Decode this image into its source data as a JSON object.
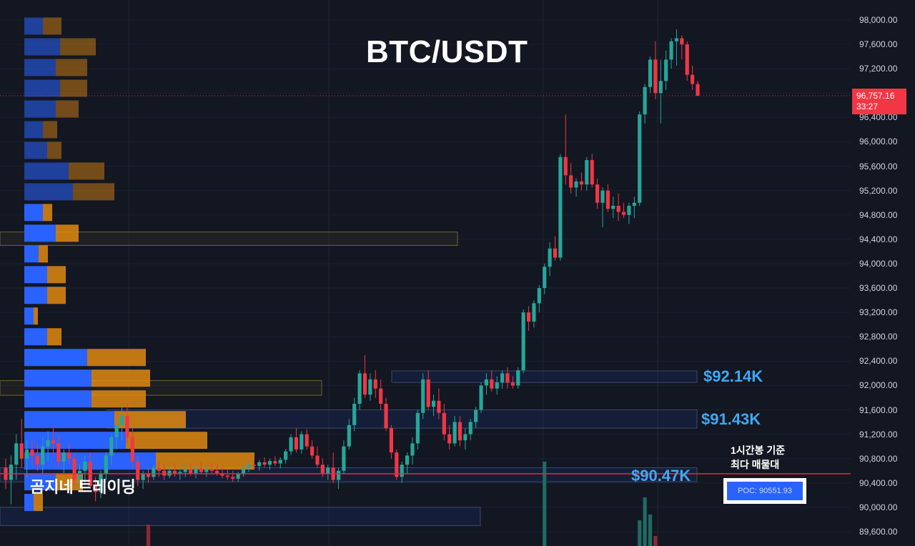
{
  "chart_data": {
    "type": "candlestick",
    "title": "BTC/USDT",
    "y_axis": {
      "ylim": [
        89420,
        98250
      ],
      "ticks": [
        "98,000.00",
        "97,600.00",
        "97,200.00",
        "96,800.00",
        "96,400.00",
        "96,000.00",
        "95,600.00",
        "95,200.00",
        "94,800.00",
        "94,400.00",
        "94,000.00",
        "93,600.00",
        "93,200.00",
        "92,800.00",
        "92,400.00",
        "92,000.00",
        "91,600.00",
        "91,200.00",
        "90,800.00",
        "90,400.00",
        "90,000.00",
        "89,600.00"
      ]
    },
    "current_price": {
      "value": "96,757.16",
      "countdown": "33:27",
      "price": 96757.16
    },
    "poc": {
      "price": 90551.93,
      "label": "POC: 90551.93"
    },
    "levels": [
      {
        "label": "$92.14K",
        "price": 92140
      },
      {
        "label": "$91.43K",
        "price": 91430
      },
      {
        "label": "$90.47K",
        "price": 90470
      }
    ],
    "annotations": {
      "poc_note_line1": "1시간봉 기준",
      "poc_note_line2": "최다 매물대",
      "watermark": "곰지네 트레이딩"
    },
    "candles": [
      [
        90650,
        90800,
        90300,
        90450
      ],
      [
        90450,
        90850,
        90050,
        90700
      ],
      [
        90700,
        91200,
        90450,
        91050
      ],
      [
        91050,
        91450,
        90650,
        90800
      ],
      [
        90800,
        91100,
        90500,
        90950
      ],
      [
        90950,
        91100,
        90700,
        90850
      ],
      [
        90850,
        91050,
        90600,
        90700
      ],
      [
        90700,
        91150,
        90550,
        91000
      ],
      [
        91000,
        91250,
        90750,
        91100
      ],
      [
        91100,
        91300,
        90900,
        91050
      ],
      [
        91050,
        91200,
        90650,
        90750
      ],
      [
        90750,
        90950,
        90550,
        90900
      ],
      [
        90900,
        91050,
        90700,
        90800
      ],
      [
        90800,
        90900,
        90350,
        90450
      ],
      [
        90450,
        90700,
        90300,
        90600
      ],
      [
        90600,
        90850,
        90400,
        90750
      ],
      [
        90750,
        90900,
        90300,
        90350
      ],
      [
        90350,
        90500,
        90100,
        90250
      ],
      [
        90250,
        90600,
        90150,
        90550
      ],
      [
        90550,
        90900,
        90450,
        90850
      ],
      [
        90850,
        91200,
        90700,
        91150
      ],
      [
        91150,
        91450,
        90950,
        91350
      ],
      [
        91350,
        91650,
        91100,
        91500
      ],
      [
        91500,
        91700,
        91050,
        91150
      ],
      [
        91150,
        91300,
        90650,
        90750
      ],
      [
        90750,
        90850,
        90350,
        90450
      ],
      [
        90450,
        90600,
        90300,
        90550
      ],
      [
        90550,
        90650,
        90400,
        90500
      ],
      [
        90500,
        90700,
        90450,
        90650
      ],
      [
        90650,
        90750,
        90500,
        90600
      ],
      [
        90600,
        90700,
        90450,
        90520
      ],
      [
        90520,
        90680,
        90480,
        90600
      ],
      [
        90600,
        90720,
        90500,
        90550
      ],
      [
        90550,
        90650,
        90450,
        90580
      ],
      [
        90580,
        90700,
        90500,
        90620
      ],
      [
        90620,
        90720,
        90520,
        90560
      ],
      [
        90560,
        90680,
        90480,
        90640
      ],
      [
        90640,
        90740,
        90540,
        90580
      ],
      [
        90580,
        90700,
        90500,
        90620
      ],
      [
        90620,
        90720,
        90540,
        90600
      ],
      [
        90600,
        90700,
        90520,
        90560
      ],
      [
        90560,
        90660,
        90480,
        90520
      ],
      [
        90520,
        90620,
        90450,
        90500
      ],
      [
        90500,
        90600,
        90420,
        90470
      ],
      [
        90470,
        90580,
        90420,
        90550
      ],
      [
        90550,
        90680,
        90500,
        90640
      ],
      [
        90640,
        90760,
        90580,
        90700
      ],
      [
        90700,
        90800,
        90620,
        90680
      ],
      [
        90680,
        90780,
        90600,
        90740
      ],
      [
        90740,
        90820,
        90660,
        90700
      ],
      [
        90700,
        90800,
        90620,
        90760
      ],
      [
        90760,
        90840,
        90680,
        90720
      ],
      [
        90720,
        90820,
        90640,
        90780
      ],
      [
        90780,
        90960,
        90720,
        90920
      ],
      [
        90920,
        91200,
        90860,
        91150
      ],
      [
        91150,
        91300,
        90900,
        90950
      ],
      [
        90950,
        91250,
        90880,
        91200
      ],
      [
        91200,
        91280,
        90950,
        91000
      ],
      [
        91000,
        91100,
        90800,
        90850
      ],
      [
        90850,
        91000,
        90650,
        90700
      ],
      [
        90700,
        90800,
        90500,
        90550
      ],
      [
        90550,
        90700,
        90450,
        90650
      ],
      [
        90650,
        90900,
        90400,
        90450
      ],
      [
        90450,
        90650,
        90300,
        90600
      ],
      [
        90600,
        91100,
        90550,
        91000
      ],
      [
        91000,
        91450,
        90950,
        91350
      ],
      [
        91350,
        91800,
        91250,
        91700
      ],
      [
        91700,
        92250,
        91600,
        92200
      ],
      [
        92200,
        92500,
        91800,
        91850
      ],
      [
        91850,
        92200,
        91750,
        92100
      ],
      [
        92100,
        92250,
        91800,
        91950
      ],
      [
        91950,
        92100,
        91600,
        91700
      ],
      [
        91700,
        91800,
        91250,
        91300
      ],
      [
        91300,
        91350,
        90800,
        90900
      ],
      [
        90900,
        90950,
        90450,
        90500
      ],
      [
        90500,
        90750,
        90400,
        90700
      ],
      [
        90700,
        90900,
        90550,
        90850
      ],
      [
        90850,
        91150,
        90700,
        91050
      ],
      [
        91050,
        91600,
        90950,
        91550
      ],
      [
        91550,
        92200,
        91450,
        92100
      ],
      [
        92100,
        92250,
        91600,
        91650
      ],
      [
        91650,
        91850,
        91500,
        91750
      ],
      [
        91750,
        91950,
        91450,
        91550
      ],
      [
        91550,
        91700,
        91100,
        91200
      ],
      [
        91200,
        91350,
        90950,
        91050
      ],
      [
        91050,
        91500,
        91000,
        91400
      ],
      [
        91400,
        91500,
        91000,
        91100
      ],
      [
        91100,
        91300,
        90950,
        91200
      ],
      [
        91200,
        91450,
        91100,
        91400
      ],
      [
        91400,
        91650,
        91300,
        91600
      ],
      [
        91600,
        92050,
        91550,
        92000
      ],
      [
        92000,
        92200,
        91850,
        92100
      ],
      [
        92100,
        92250,
        91900,
        91950
      ],
      [
        91950,
        92150,
        91850,
        92050
      ],
      [
        92050,
        92250,
        91950,
        92200
      ],
      [
        92200,
        92300,
        91950,
        92050
      ],
      [
        92050,
        92150,
        91950,
        92000
      ],
      [
        92000,
        92300,
        91950,
        92250
      ],
      [
        92250,
        93250,
        92200,
        93200
      ],
      [
        93200,
        93300,
        92900,
        93050
      ],
      [
        93050,
        93400,
        92950,
        93350
      ],
      [
        93350,
        93650,
        93200,
        93600
      ],
      [
        93600,
        94000,
        93500,
        93950
      ],
      [
        93950,
        94350,
        93800,
        94250
      ],
      [
        94250,
        94450,
        94050,
        94100
      ],
      [
        94100,
        95800,
        94050,
        95750
      ],
      [
        95750,
        96450,
        95300,
        95450
      ],
      [
        95450,
        95650,
        95150,
        95250
      ],
      [
        95250,
        95400,
        95100,
        95350
      ],
      [
        95350,
        95500,
        95200,
        95300
      ],
      [
        95300,
        95750,
        95200,
        95700
      ],
      [
        95700,
        95800,
        95250,
        95300
      ],
      [
        95300,
        95400,
        94900,
        95000
      ],
      [
        95000,
        95250,
        94600,
        95200
      ],
      [
        95200,
        95300,
        94850,
        94900
      ],
      [
        94900,
        95100,
        94750,
        94950
      ],
      [
        94950,
        95150,
        94700,
        94850
      ],
      [
        94850,
        95000,
        94750,
        94800
      ],
      [
        94800,
        95000,
        94650,
        94950
      ],
      [
        94950,
        95100,
        94750,
        95000
      ],
      [
        95000,
        96500,
        94950,
        96450
      ],
      [
        96450,
        96950,
        96300,
        96900
      ],
      [
        96900,
        97400,
        96800,
        97350
      ],
      [
        97350,
        97650,
        96700,
        96800
      ],
      [
        96800,
        97350,
        96300,
        97000
      ],
      [
        97000,
        97500,
        96850,
        97350
      ],
      [
        97350,
        97700,
        97200,
        97650
      ],
      [
        97650,
        97850,
        97250,
        97700
      ],
      [
        97700,
        97750,
        97350,
        97600
      ],
      [
        97600,
        97650,
        97000,
        97100
      ],
      [
        97100,
        97250,
        96850,
        96950
      ],
      [
        96950,
        97000,
        96750,
        96757
      ]
    ],
    "volume_profile": [
      {
        "price": 97900,
        "buy": 260,
        "sell": 260
      },
      {
        "price": 97560,
        "buy": 500,
        "sell": 500
      },
      {
        "price": 97220,
        "buy": 440,
        "sell": 440
      },
      {
        "price": 96880,
        "buy": 500,
        "sell": 380
      },
      {
        "price": 96540,
        "buy": 440,
        "sell": 320
      },
      {
        "price": 96200,
        "buy": 260,
        "sell": 200
      },
      {
        "price": 95860,
        "buy": 320,
        "sell": 200
      },
      {
        "price": 95520,
        "buy": 620,
        "sell": 500
      },
      {
        "price": 95180,
        "buy": 680,
        "sell": 580
      },
      {
        "price": 94840,
        "buy": 260,
        "sell": 130
      },
      {
        "price": 94500,
        "buy": 440,
        "sell": 320
      },
      {
        "price": 94160,
        "buy": 200,
        "sell": 130
      },
      {
        "price": 93820,
        "buy": 320,
        "sell": 260
      },
      {
        "price": 93480,
        "buy": 320,
        "sell": 260
      },
      {
        "price": 93140,
        "buy": 130,
        "sell": 60
      },
      {
        "price": 92800,
        "buy": 320,
        "sell": 200
      },
      {
        "price": 92460,
        "buy": 880,
        "sell": 820
      },
      {
        "price": 92120,
        "buy": 940,
        "sell": 820
      },
      {
        "price": 91780,
        "buy": 940,
        "sell": 760
      },
      {
        "price": 91440,
        "buy": 1260,
        "sell": 1000
      },
      {
        "price": 91100,
        "buy": 1420,
        "sell": 1140
      },
      {
        "price": 90760,
        "buy": 1840,
        "sell": 1380
      },
      {
        "price": 90420,
        "buy": 440,
        "sell": 380
      },
      {
        "price": 90080,
        "buy": 130,
        "sell": 130
      }
    ],
    "volume_spikes": [
      {
        "candle": 27,
        "height": 30
      },
      {
        "candle": 102,
        "height": 118
      },
      {
        "candle": 120,
        "height": 36
      },
      {
        "candle": 121,
        "height": 68
      },
      {
        "candle": 122,
        "height": 44
      },
      {
        "candle": 123,
        "height": 14
      }
    ]
  },
  "colors": {
    "background": "#131722",
    "up": "#26a69a",
    "down": "#f23645",
    "buy_volume": "#2962ff",
    "sell_volume": "#e08a10",
    "poc_line": "#e62e2e",
    "level_text": "#3fa9f5"
  }
}
